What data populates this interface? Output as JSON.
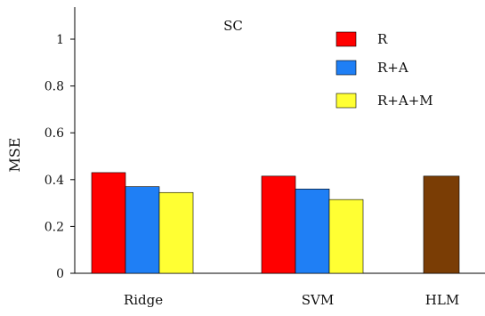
{
  "chart_data": {
    "type": "bar",
    "title": "SC",
    "xlabel": "",
    "ylabel": "MSE",
    "categories": [
      "Ridge",
      "SVM",
      "HLM"
    ],
    "ylim": [
      0,
      1.1
    ],
    "yticks": [
      "0",
      "0.2",
      "0.4",
      "0.6",
      "0.8",
      "1"
    ],
    "yticks_values": [
      0,
      0.2,
      0.4,
      0.6,
      0.8,
      1.0
    ],
    "series": [
      {
        "name": "R",
        "color": "#ff0000",
        "values": [
          0.43,
          0.415,
          null
        ]
      },
      {
        "name": "R+A",
        "color": "#1f7ff5",
        "values": [
          0.37,
          0.36,
          null
        ]
      },
      {
        "name": "R+A+M",
        "color": "#ffff33",
        "values": [
          0.345,
          0.315,
          null
        ]
      }
    ],
    "extra_bars": [
      {
        "category": "HLM",
        "color": "#7a3d05",
        "value": 0.415
      }
    ],
    "legend": {
      "placement": "top-right"
    },
    "grid": false
  }
}
